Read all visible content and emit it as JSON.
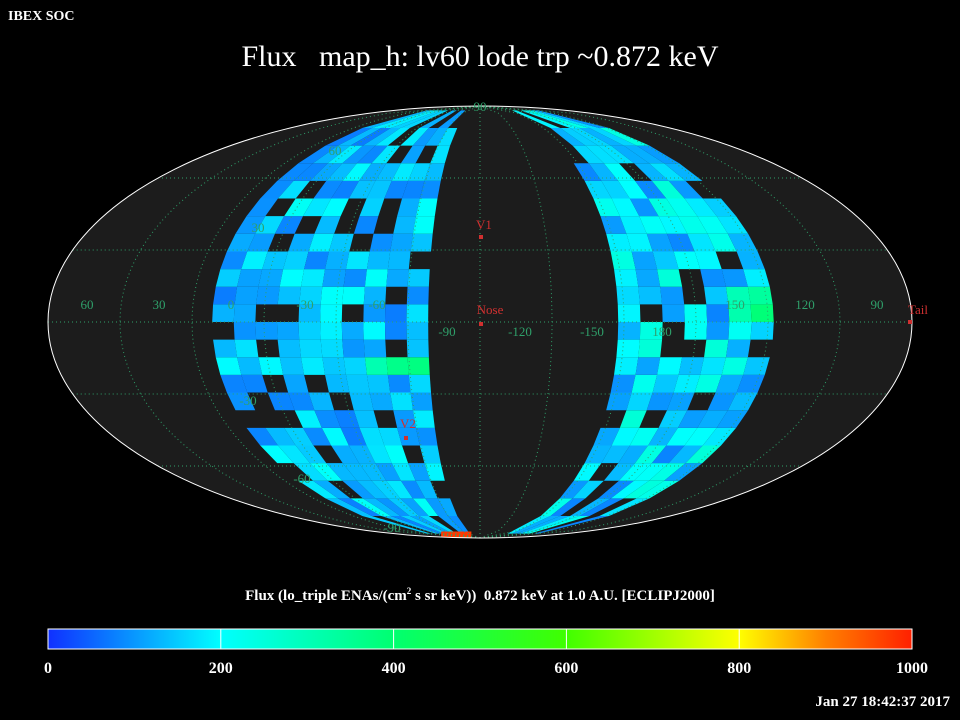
{
  "header": {
    "org": "IBEX SOC",
    "title": "Flux   map_h: lv60 lode trp ~0.872 keV"
  },
  "colorbar": {
    "label_pre": "Flux (lo_triple ENAs/(cm",
    "label_sup": "2",
    "label_post": " s sr keV))  0.872 keV at 1.0 A.U. [ECLIPJ2000]",
    "ticks": [
      "0",
      "200",
      "400",
      "600",
      "800",
      "1000"
    ],
    "range": [
      0,
      1000
    ]
  },
  "footer": {
    "timestamp": "Jan 27 18:42:37 2017"
  },
  "chart_data": {
    "type": "heatmap",
    "projection": "aitoff-mollweide-sky",
    "title": "Flux   map_h: lv60 lode trp ~0.872 keV",
    "colorbar_label": "Flux (lo_triple ENAs/(cm2 s sr keV))  0.872 keV at 1.0 A.U. [ECLIPJ2000]",
    "value_range": [
      0,
      1000
    ],
    "colormap": [
      "#1030ff",
      "#00ffff",
      "#00ff40",
      "#80ff00",
      "#ffff00",
      "#ff7000",
      "#ff2000"
    ],
    "background_color": "#1c1c1c",
    "grid": true,
    "grid_color": "#2fa06a",
    "longitude_labels": [
      "60",
      "30",
      "0",
      "-30",
      "-60",
      "-90",
      "-120",
      "-150",
      "180",
      "150",
      "120",
      "90"
    ],
    "latitude_labels": [
      "90",
      "60",
      "30",
      "-30",
      "-60",
      "-90"
    ],
    "markers": [
      {
        "name": "V1",
        "lon": -95,
        "lat": 35
      },
      {
        "name": "Nose",
        "lon": -105,
        "lat": 5
      },
      {
        "name": "V2",
        "lon": -70,
        "lat": -35
      },
      {
        "name": "Tail",
        "lon": 75,
        "lat": -5
      }
    ],
    "observed_bands": [
      {
        "lon_range": [
          0,
          -70
        ],
        "typical_flux": 130
      },
      {
        "lon_range": [
          170,
          140
        ],
        "typical_flux": 150
      }
    ],
    "peak_flux_regions": [
      {
        "lon": 135,
        "lat": 10,
        "flux": 260
      },
      {
        "lon": -65,
        "lat": -20,
        "flux": 220
      },
      {
        "lon": -95,
        "lat": -87,
        "flux": 950
      }
    ]
  }
}
